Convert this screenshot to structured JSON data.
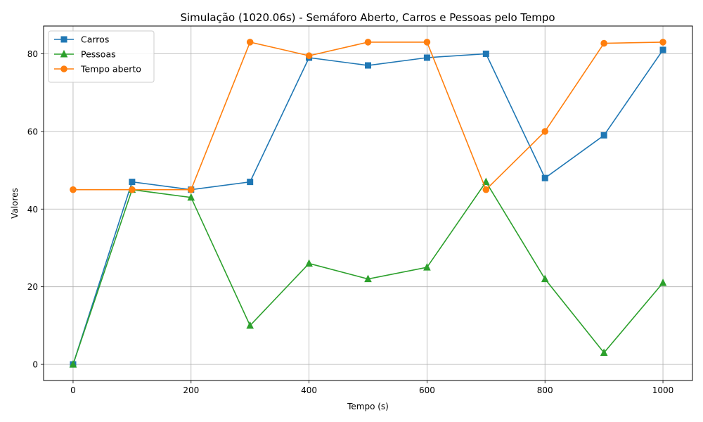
{
  "chart_data": {
    "type": "line",
    "title": "Simulação (1020.06s) - Semáforo Aberto, Carros e Pessoas pelo Tempo",
    "xlabel": "Tempo (s)",
    "ylabel": "Valores",
    "xlim": [
      -50,
      1050
    ],
    "ylim": [
      -4.15,
      87.15
    ],
    "xticks": [
      0,
      200,
      400,
      600,
      800,
      1000
    ],
    "yticks": [
      0,
      20,
      40,
      60,
      80
    ],
    "grid": true,
    "legend_position": "upper-left",
    "x": [
      0,
      100,
      200,
      300,
      400,
      500,
      600,
      700,
      800,
      900,
      1000
    ],
    "series": [
      {
        "name": "Carros",
        "color": "#1f77b4",
        "marker": "square",
        "values": [
          0,
          47,
          45,
          47,
          79,
          77,
          79,
          80,
          48,
          59,
          81
        ]
      },
      {
        "name": "Pessoas",
        "color": "#2ca02c",
        "marker": "triangle",
        "values": [
          0,
          45,
          43,
          10,
          26,
          22,
          25,
          47,
          22,
          3,
          21
        ]
      },
      {
        "name": "Tempo aberto",
        "color": "#ff7f0e",
        "marker": "circle",
        "values": [
          45,
          45,
          45,
          83,
          79.5,
          83,
          83,
          45,
          60,
          82.7,
          83
        ]
      }
    ]
  }
}
